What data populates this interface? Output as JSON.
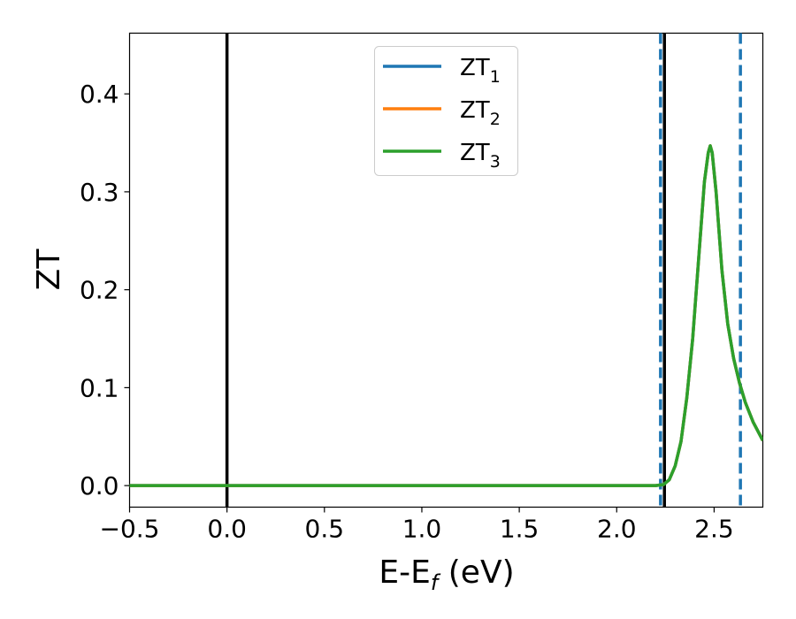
{
  "chart_data": {
    "type": "line",
    "xlabel": "E-E",
    "xlabel_sub": "f",
    "xlabel_unit": " (eV)",
    "ylabel": "ZT",
    "xlim": [
      -0.5,
      2.75
    ],
    "ylim": [
      -0.022,
      0.462
    ],
    "xticks": [
      -0.5,
      0.0,
      0.5,
      1.0,
      1.5,
      2.0,
      2.5
    ],
    "xtick_labels": [
      "−0.5",
      "0.0",
      "0.5",
      "1.0",
      "1.5",
      "2.0",
      "2.5"
    ],
    "yticks": [
      0.0,
      0.1,
      0.2,
      0.3,
      0.4
    ],
    "ytick_labels": [
      "0.0",
      "0.1",
      "0.2",
      "0.3",
      "0.4"
    ],
    "grid": false,
    "legend_position": "top-center",
    "series": [
      {
        "name": "ZT",
        "name_sub": "1",
        "color": "#1f77b4",
        "x": [
          -0.5,
          0.0,
          0.5,
          1.0,
          1.5,
          2.0,
          2.2,
          2.24,
          2.27,
          2.3,
          2.33,
          2.36,
          2.39,
          2.42,
          2.45,
          2.47,
          2.48,
          2.49,
          2.51,
          2.54,
          2.57,
          2.6,
          2.63,
          2.66,
          2.7,
          2.75
        ],
        "y": [
          0.0,
          0.0,
          0.0,
          0.0,
          0.0,
          0.0,
          0.0,
          0.001,
          0.006,
          0.02,
          0.045,
          0.09,
          0.15,
          0.23,
          0.31,
          0.34,
          0.347,
          0.34,
          0.3,
          0.22,
          0.165,
          0.13,
          0.105,
          0.085,
          0.065,
          0.046
        ]
      },
      {
        "name": "ZT",
        "name_sub": "2",
        "color": "#ff7f0e",
        "x": [
          -0.5,
          0.0,
          0.5,
          1.0,
          1.5,
          2.0,
          2.2,
          2.24,
          2.27,
          2.3,
          2.33,
          2.36,
          2.39,
          2.42,
          2.45,
          2.47,
          2.48,
          2.49,
          2.51,
          2.54,
          2.57,
          2.6,
          2.63,
          2.66,
          2.7,
          2.75
        ],
        "y": [
          0.0,
          0.0,
          0.0,
          0.0,
          0.0,
          0.0,
          0.0,
          0.001,
          0.006,
          0.02,
          0.045,
          0.09,
          0.15,
          0.23,
          0.31,
          0.34,
          0.347,
          0.34,
          0.3,
          0.22,
          0.165,
          0.13,
          0.105,
          0.085,
          0.065,
          0.046
        ]
      },
      {
        "name": "ZT",
        "name_sub": "3",
        "color": "#2ca02c",
        "x": [
          -0.5,
          0.0,
          0.5,
          1.0,
          1.5,
          2.0,
          2.2,
          2.24,
          2.27,
          2.3,
          2.33,
          2.36,
          2.39,
          2.42,
          2.45,
          2.47,
          2.48,
          2.49,
          2.51,
          2.54,
          2.57,
          2.6,
          2.63,
          2.66,
          2.7,
          2.75
        ],
        "y": [
          0.0,
          0.0,
          0.0,
          0.0,
          0.0,
          0.0,
          0.0,
          0.001,
          0.006,
          0.02,
          0.045,
          0.09,
          0.15,
          0.23,
          0.31,
          0.34,
          0.347,
          0.34,
          0.3,
          0.22,
          0.165,
          0.13,
          0.105,
          0.085,
          0.065,
          0.046
        ]
      }
    ],
    "vertical_lines": [
      {
        "x": 0.0,
        "style": "solid",
        "color": "#000000"
      },
      {
        "x": 2.245,
        "style": "solid",
        "color": "#000000"
      },
      {
        "x": 2.225,
        "style": "dashed",
        "color": "#1f77b4"
      },
      {
        "x": 2.635,
        "style": "dashed",
        "color": "#1f77b4"
      }
    ]
  }
}
